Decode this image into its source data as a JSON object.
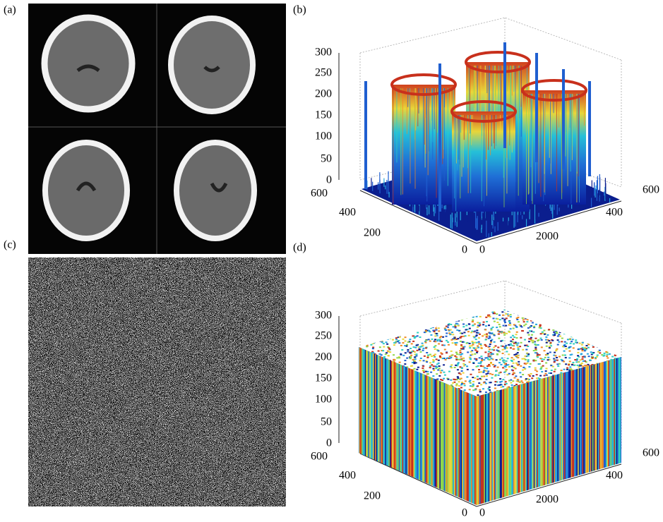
{
  "panels": {
    "a": {
      "label": "(a)"
    },
    "b": {
      "label": "(b)",
      "z_ticks": [
        "300",
        "250",
        "200",
        "150",
        "100",
        "50",
        "0"
      ],
      "y_ticks": [
        "600",
        "400",
        "200",
        "0"
      ],
      "x_ticks": [
        "0",
        "2000",
        "400",
        "600"
      ]
    },
    "c": {
      "label": "(c)"
    },
    "d": {
      "label": "(d)",
      "z_ticks": [
        "300",
        "250",
        "200",
        "150",
        "100",
        "50",
        "0"
      ],
      "y_ticks": [
        "600",
        "400",
        "200",
        "0"
      ],
      "x_ticks": [
        "0",
        "2000",
        "400",
        "600"
      ]
    }
  }
}
